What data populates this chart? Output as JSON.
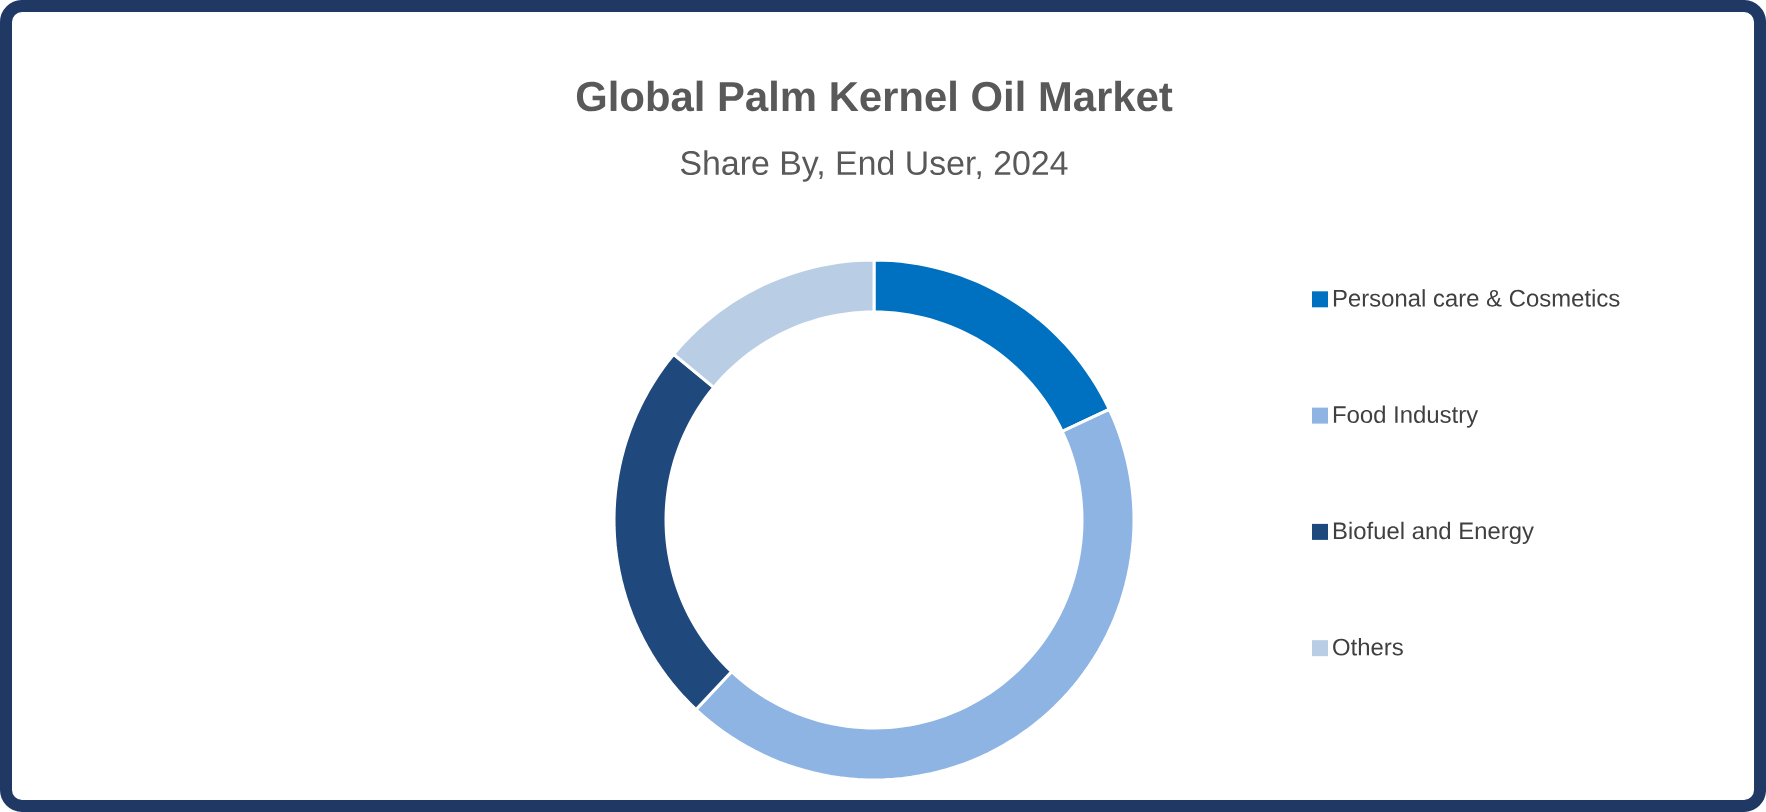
{
  "chart_data": {
    "type": "donut",
    "title": "Global Palm Kernel Oil Market",
    "subtitle": "Share By, End User, 2024",
    "categories": [
      "Personal care & Cosmetics",
      "Food Industry",
      "Biofuel and Energy",
      "Others"
    ],
    "values": [
      18,
      44,
      24,
      14
    ],
    "colors": [
      "#0070c0",
      "#8eb4e3",
      "#1f497d",
      "#b9cde5"
    ],
    "legend": "right"
  }
}
